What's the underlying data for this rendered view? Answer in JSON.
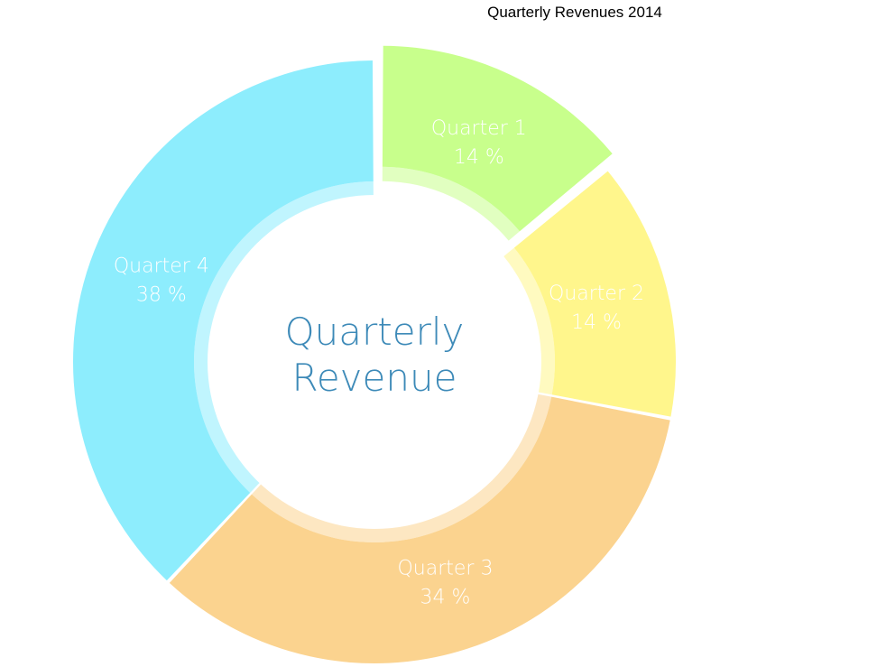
{
  "chart_data": {
    "type": "pie",
    "variant": "donut",
    "title": "Quarterly Revenues 2014",
    "center_text": [
      "Quarterly",
      "Revenue"
    ],
    "exploded_slice": "Quarter 1",
    "slices": [
      {
        "label": "Quarter 1",
        "value": 14,
        "display": "14 %",
        "color": "#c8ff8c"
      },
      {
        "label": "Quarter 2",
        "value": 14,
        "display": "14 %",
        "color": "#fff68c"
      },
      {
        "label": "Quarter 3",
        "value": 34,
        "display": "34 %",
        "color": "#fbd38f"
      },
      {
        "label": "Quarter 4",
        "value": 38,
        "display": "38 %",
        "color": "#8dedfd"
      }
    ]
  }
}
